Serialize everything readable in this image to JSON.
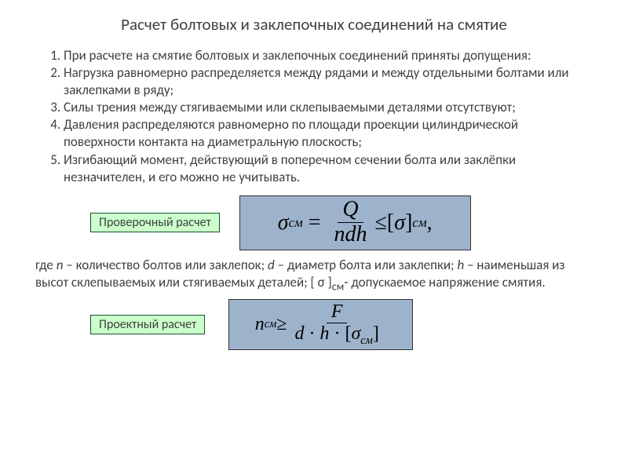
{
  "title": "Расчет болтовых и заклепочных соединений на смятие",
  "list": {
    "i1": "При расчете на смятие болтовых и заклепочных соединений приняты допущения:",
    "i2": "Нагрузка равномерно распределяется между рядами и между отдельными болтами или заклепками  в ряду;",
    "i3": "Силы трения между стягиваемыми или склепываемыми деталями отсутствуют;",
    "i4": "Давления распределяются равномерно по площади проекции цилиндрической поверхности контакта на диаметральную плоскость;",
    "i5": "Изгибающий момент, действующий в поперечном сечении болта или заклёпки незначителен, и его можно не учитывать."
  },
  "label1": "Проверочный расчет",
  "label2": "Проектный расчет",
  "desc_pre": "где ",
  "desc_n": "n",
  "desc_1": " – количество болтов или заклепок;  ",
  "desc_d": "d",
  "desc_2": " – диаметр болта или заклепки; ",
  "desc_h": "h",
  "desc_3": " – наименьшая из высот склепываемых или стягиваемых деталей; [ σ ]",
  "desc_sub": "см",
  "desc_4": "- допускаемое напряжение смятия.",
  "f1": {
    "lhs_sym": "σ",
    "lhs_sub": "см",
    "num": "Q",
    "den_n": "n",
    "den_d": "d",
    "den_h": "h",
    "op": " ≤ ",
    "rhs_l": "[",
    "rhs_sym": "σ",
    "rhs_r": "]",
    "rhs_sub": "см",
    "comma": ","
  },
  "f2": {
    "lhs_n": "n",
    "lhs_sub": "см",
    "op": " ≥ ",
    "num": "F",
    "den_d": "d",
    "dot": " · ",
    "den_h": "h",
    "den_l": "[",
    "den_sym": "σ",
    "den_sub": "см",
    "den_r": "]"
  },
  "colors": {
    "label_bg": "#ccffcc",
    "label_border": "#14532d",
    "formula_bg": "#9db3cc",
    "text": "#404040"
  }
}
